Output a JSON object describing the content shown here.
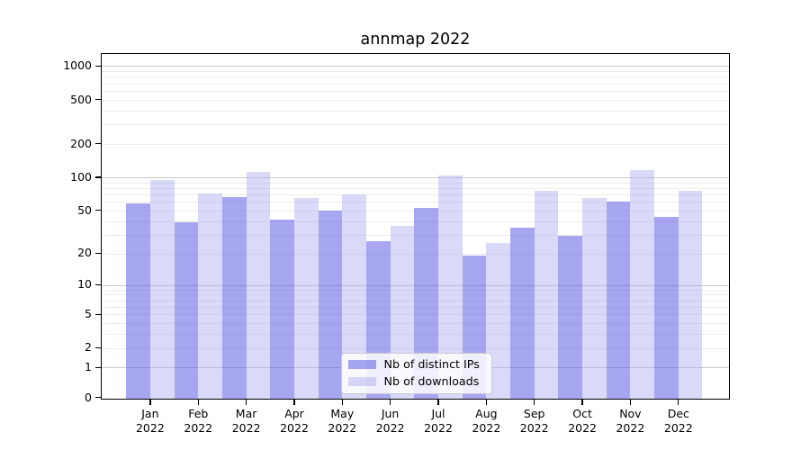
{
  "chart_data": {
    "type": "bar",
    "title": "annmap 2022",
    "categories": [
      "Jan",
      "Feb",
      "Mar",
      "Apr",
      "May",
      "Jun",
      "Jul",
      "Aug",
      "Sep",
      "Oct",
      "Nov",
      "Dec"
    ],
    "x_year_label": "2022",
    "series": [
      {
        "name": "Nb of distinct IPs",
        "color_hex": "#a7a7f1",
        "fill": "rgba(95,95,230,0.55)",
        "values": [
          58,
          39,
          66,
          41,
          50,
          26,
          53,
          19,
          35,
          29,
          60,
          44
        ]
      },
      {
        "name": "Nb of downloads",
        "color_hex": "#d9d9f8",
        "fill": "rgba(170,170,240,0.45)",
        "values": [
          94,
          72,
          112,
          65,
          70,
          36,
          103,
          25,
          76,
          65,
          116,
          76
        ]
      }
    ],
    "y_axis": {
      "ticks": [
        1000,
        500,
        200,
        100,
        50,
        20,
        10,
        5,
        2,
        1,
        0
      ],
      "major_grid": [
        1,
        10,
        100,
        1000
      ],
      "minor_grid": [
        2,
        3,
        4,
        5,
        6,
        7,
        8,
        9,
        20,
        30,
        40,
        50,
        60,
        70,
        80,
        90,
        200,
        300,
        400,
        500,
        600,
        700,
        800,
        900
      ],
      "scale": "log10(1+x)",
      "ylim": [
        0,
        1300
      ]
    },
    "grid": true,
    "legend_position": "lower center",
    "background": "#ffffff",
    "text_color": "#000000",
    "major_grid_color": "#c9c9c9",
    "minor_grid_color": "#ececec"
  }
}
